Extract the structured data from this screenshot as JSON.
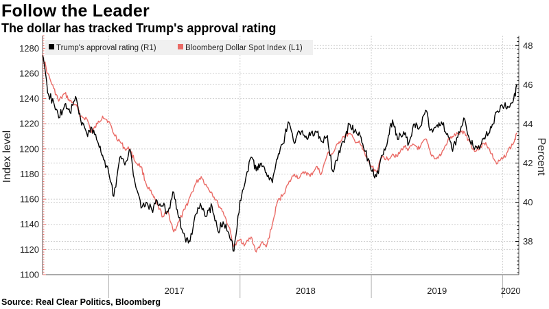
{
  "header": {
    "title": "Follow the Leader",
    "subtitle": "The dollar has tracked Trump's approval rating"
  },
  "footer": {
    "source": "Source: Real Clear Politics, Bloomberg"
  },
  "colors": {
    "approval": "#000000",
    "dollar": "#ea6b66",
    "grid": "#cfcfcf",
    "axis": "#555555"
  },
  "chart_data": {
    "type": "line",
    "grid": true,
    "legend_position": "top-left",
    "x_range": [
      "2016-07-01",
      "2020-02-15"
    ],
    "x_tick_labels": [
      "2017",
      "2018",
      "2019",
      "2020"
    ],
    "left_axis": {
      "label": "Index level",
      "range": [
        1100,
        1290
      ],
      "ticks": [
        1100,
        1120,
        1140,
        1160,
        1180,
        1200,
        1220,
        1240,
        1260,
        1280
      ]
    },
    "right_axis": {
      "label": "Percent",
      "range": [
        36.3,
        48.5
      ],
      "ticks": [
        38,
        40,
        42,
        44,
        46,
        48
      ]
    },
    "series": [
      {
        "name": "Trump's approval rating (R1)",
        "axis": "right",
        "points": [
          [
            "2016-07-01",
            47.5
          ],
          [
            "2016-07-15",
            45.6
          ],
          [
            "2016-08-01",
            45.1
          ],
          [
            "2016-08-15",
            44.3
          ],
          [
            "2016-09-01",
            45.0
          ],
          [
            "2016-09-15",
            44.6
          ],
          [
            "2016-10-01",
            45.4
          ],
          [
            "2016-10-15",
            44.2
          ],
          [
            "2016-11-01",
            43.5
          ],
          [
            "2016-11-15",
            43.8
          ],
          [
            "2016-12-01",
            43.1
          ],
          [
            "2016-12-15",
            42.4
          ],
          [
            "2017-01-01",
            41.5
          ],
          [
            "2017-01-15",
            40.3
          ],
          [
            "2017-02-01",
            42.3
          ],
          [
            "2017-02-15",
            41.9
          ],
          [
            "2017-03-01",
            42.7
          ],
          [
            "2017-03-15",
            41.0
          ],
          [
            "2017-04-01",
            39.7
          ],
          [
            "2017-04-15",
            40.0
          ],
          [
            "2017-05-01",
            39.6
          ],
          [
            "2017-05-15",
            40.1
          ],
          [
            "2017-06-01",
            39.8
          ],
          [
            "2017-06-15",
            39.5
          ],
          [
            "2017-07-01",
            40.5
          ],
          [
            "2017-07-15",
            39.2
          ],
          [
            "2017-08-01",
            38.2
          ],
          [
            "2017-08-15",
            38.0
          ],
          [
            "2017-09-01",
            39.4
          ],
          [
            "2017-09-15",
            39.8
          ],
          [
            "2017-10-01",
            39.3
          ],
          [
            "2017-10-15",
            39.8
          ],
          [
            "2017-11-01",
            38.5
          ],
          [
            "2017-11-15",
            39.0
          ],
          [
            "2017-12-01",
            38.4
          ],
          [
            "2017-12-15",
            37.5
          ],
          [
            "2018-01-01",
            40.1
          ],
          [
            "2018-01-15",
            41.0
          ],
          [
            "2018-02-01",
            42.3
          ],
          [
            "2018-02-15",
            41.6
          ],
          [
            "2018-03-01",
            42.0
          ],
          [
            "2018-03-15",
            41.5
          ],
          [
            "2018-04-01",
            41.0
          ],
          [
            "2018-04-15",
            42.2
          ],
          [
            "2018-05-01",
            43.0
          ],
          [
            "2018-05-15",
            44.1
          ],
          [
            "2018-06-01",
            43.0
          ],
          [
            "2018-06-15",
            43.6
          ],
          [
            "2018-07-01",
            43.3
          ],
          [
            "2018-07-15",
            43.4
          ],
          [
            "2018-08-01",
            43.6
          ],
          [
            "2018-08-15",
            43.1
          ],
          [
            "2018-09-01",
            43.4
          ],
          [
            "2018-09-15",
            41.6
          ],
          [
            "2018-10-01",
            42.4
          ],
          [
            "2018-10-15",
            43.1
          ],
          [
            "2018-11-01",
            44.0
          ],
          [
            "2018-11-15",
            43.6
          ],
          [
            "2018-12-01",
            43.4
          ],
          [
            "2018-12-15",
            42.6
          ],
          [
            "2019-01-01",
            41.6
          ],
          [
            "2019-01-15",
            41.3
          ],
          [
            "2019-02-01",
            42.4
          ],
          [
            "2019-02-15",
            43.1
          ],
          [
            "2019-03-01",
            44.2
          ],
          [
            "2019-03-15",
            43.2
          ],
          [
            "2019-04-01",
            43.6
          ],
          [
            "2019-04-15",
            43.0
          ],
          [
            "2019-05-01",
            44.0
          ],
          [
            "2019-05-15",
            43.8
          ],
          [
            "2019-06-01",
            44.7
          ],
          [
            "2019-06-15",
            43.7
          ],
          [
            "2019-07-01",
            43.9
          ],
          [
            "2019-07-15",
            44.1
          ],
          [
            "2019-08-01",
            43.5
          ],
          [
            "2019-08-15",
            42.6
          ],
          [
            "2019-09-01",
            43.6
          ],
          [
            "2019-09-15",
            44.3
          ],
          [
            "2019-10-01",
            43.2
          ],
          [
            "2019-10-15",
            42.7
          ],
          [
            "2019-11-01",
            42.9
          ],
          [
            "2019-11-15",
            43.4
          ],
          [
            "2019-12-01",
            43.8
          ],
          [
            "2019-12-15",
            44.6
          ],
          [
            "2020-01-01",
            44.9
          ],
          [
            "2020-01-15",
            44.9
          ],
          [
            "2020-02-01",
            45.3
          ],
          [
            "2020-02-10",
            45.9
          ]
        ]
      },
      {
        "name": "Bloomberg Dollar Spot Index (L1)",
        "axis": "left",
        "points": [
          [
            "2016-07-01",
            1275
          ],
          [
            "2016-07-15",
            1260
          ],
          [
            "2016-08-01",
            1248
          ],
          [
            "2016-08-15",
            1238
          ],
          [
            "2016-09-01",
            1244
          ],
          [
            "2016-09-15",
            1238
          ],
          [
            "2016-10-01",
            1235
          ],
          [
            "2016-10-15",
            1226
          ],
          [
            "2016-11-01",
            1224
          ],
          [
            "2016-11-15",
            1213
          ],
          [
            "2016-12-01",
            1220
          ],
          [
            "2016-12-15",
            1226
          ],
          [
            "2017-01-01",
            1222
          ],
          [
            "2017-01-15",
            1212
          ],
          [
            "2017-02-01",
            1206
          ],
          [
            "2017-02-15",
            1200
          ],
          [
            "2017-03-01",
            1200
          ],
          [
            "2017-03-15",
            1190
          ],
          [
            "2017-04-01",
            1186
          ],
          [
            "2017-04-15",
            1172
          ],
          [
            "2017-05-01",
            1164
          ],
          [
            "2017-05-15",
            1156
          ],
          [
            "2017-06-01",
            1146
          ],
          [
            "2017-06-15",
            1150
          ],
          [
            "2017-07-01",
            1134
          ],
          [
            "2017-07-15",
            1142
          ],
          [
            "2017-08-01",
            1152
          ],
          [
            "2017-08-15",
            1162
          ],
          [
            "2017-09-01",
            1173
          ],
          [
            "2017-09-15",
            1178
          ],
          [
            "2017-10-01",
            1170
          ],
          [
            "2017-10-15",
            1165
          ],
          [
            "2017-11-01",
            1156
          ],
          [
            "2017-11-15",
            1150
          ],
          [
            "2017-12-01",
            1138
          ],
          [
            "2017-12-15",
            1122
          ],
          [
            "2018-01-01",
            1128
          ],
          [
            "2018-01-15",
            1124
          ],
          [
            "2018-02-01",
            1130
          ],
          [
            "2018-02-15",
            1118
          ],
          [
            "2018-03-01",
            1125
          ],
          [
            "2018-03-15",
            1122
          ],
          [
            "2018-04-01",
            1140
          ],
          [
            "2018-04-15",
            1158
          ],
          [
            "2018-05-01",
            1164
          ],
          [
            "2018-05-15",
            1172
          ],
          [
            "2018-06-01",
            1180
          ],
          [
            "2018-06-15",
            1177
          ],
          [
            "2018-07-01",
            1182
          ],
          [
            "2018-07-15",
            1178
          ],
          [
            "2018-08-01",
            1186
          ],
          [
            "2018-08-15",
            1180
          ],
          [
            "2018-09-01",
            1196
          ],
          [
            "2018-09-15",
            1196
          ],
          [
            "2018-10-01",
            1204
          ],
          [
            "2018-10-15",
            1210
          ],
          [
            "2018-11-01",
            1212
          ],
          [
            "2018-11-15",
            1207
          ],
          [
            "2018-12-01",
            1204
          ],
          [
            "2018-12-15",
            1195
          ],
          [
            "2019-01-01",
            1186
          ],
          [
            "2019-01-15",
            1182
          ],
          [
            "2019-02-01",
            1194
          ],
          [
            "2019-02-15",
            1192
          ],
          [
            "2019-03-01",
            1196
          ],
          [
            "2019-03-15",
            1194
          ],
          [
            "2019-04-01",
            1202
          ],
          [
            "2019-04-15",
            1200
          ],
          [
            "2019-05-01",
            1203
          ],
          [
            "2019-05-15",
            1200
          ],
          [
            "2019-06-01",
            1208
          ],
          [
            "2019-06-15",
            1196
          ],
          [
            "2019-07-01",
            1192
          ],
          [
            "2019-07-15",
            1196
          ],
          [
            "2019-08-01",
            1206
          ],
          [
            "2019-08-15",
            1210
          ],
          [
            "2019-09-01",
            1212
          ],
          [
            "2019-09-15",
            1214
          ],
          [
            "2019-10-01",
            1206
          ],
          [
            "2019-10-15",
            1198
          ],
          [
            "2019-11-01",
            1202
          ],
          [
            "2019-11-15",
            1205
          ],
          [
            "2019-12-01",
            1196
          ],
          [
            "2019-12-15",
            1188
          ],
          [
            "2020-01-01",
            1192
          ],
          [
            "2020-01-15",
            1198
          ],
          [
            "2020-02-01",
            1205
          ],
          [
            "2020-02-10",
            1212
          ]
        ]
      }
    ]
  }
}
